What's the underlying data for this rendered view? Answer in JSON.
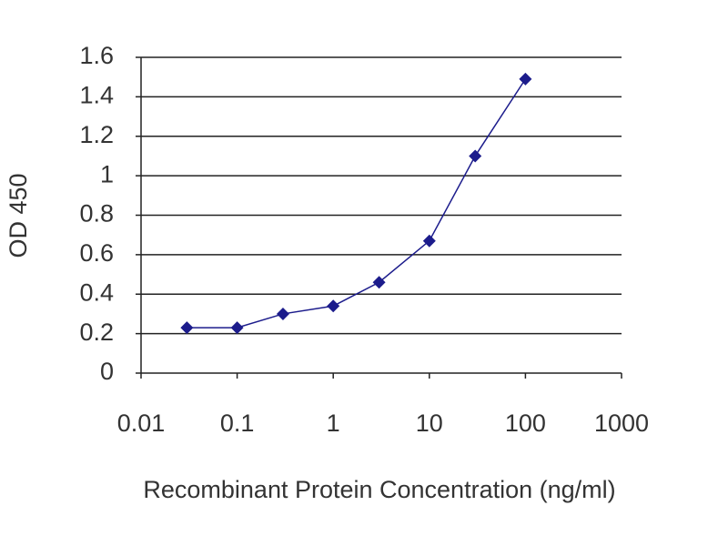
{
  "chart_data": {
    "type": "line",
    "x_label": "Recombinant Protein Concentration (ng/ml)",
    "y_label": "OD 450",
    "xscale": "log",
    "grid": true,
    "color": "#1c1c8c",
    "x": [
      0.03,
      0.1,
      0.3,
      1,
      3,
      10,
      30,
      100
    ],
    "values": [
      0.23,
      0.23,
      0.3,
      0.34,
      0.46,
      0.67,
      1.1,
      1.49
    ],
    "xlim": [
      0.01,
      1000
    ],
    "xticks": [
      0.01,
      0.1,
      1,
      10,
      100,
      1000
    ],
    "ylim": [
      0,
      1.6
    ],
    "yticks": [
      0,
      0.2,
      0.4,
      0.6,
      0.8,
      1,
      1.2,
      1.4,
      1.6
    ]
  }
}
